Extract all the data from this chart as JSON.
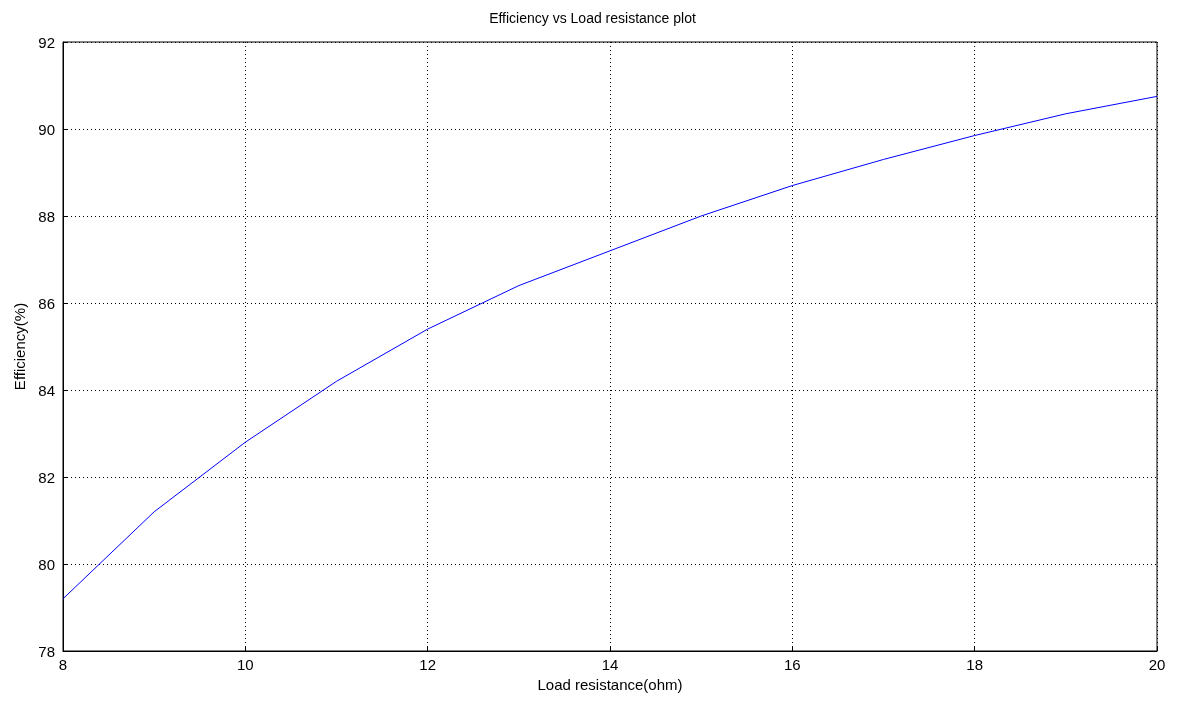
{
  "chart_data": {
    "type": "line",
    "title": "Efficiency vs Load resistance plot",
    "xlabel": "Load resistance(ohm)",
    "ylabel": "Efficiency(%)",
    "x": [
      8,
      9,
      10,
      11,
      12,
      13,
      14,
      15,
      16,
      17,
      18,
      19,
      20
    ],
    "series": [
      {
        "color": "#0000ff",
        "values": [
          79.2,
          81.2,
          82.8,
          84.2,
          85.4,
          86.4,
          87.2,
          88.0,
          88.7,
          89.3,
          89.85,
          90.35,
          90.75
        ]
      }
    ],
    "xlim": [
      8,
      20
    ],
    "xticks": [
      8,
      10,
      12,
      14,
      16,
      18,
      20
    ],
    "ylim": [
      78,
      92
    ],
    "yticks": [
      78,
      80,
      82,
      84,
      86,
      88,
      90,
      92
    ],
    "grid": true,
    "marker": "none",
    "line_style": "solid"
  }
}
